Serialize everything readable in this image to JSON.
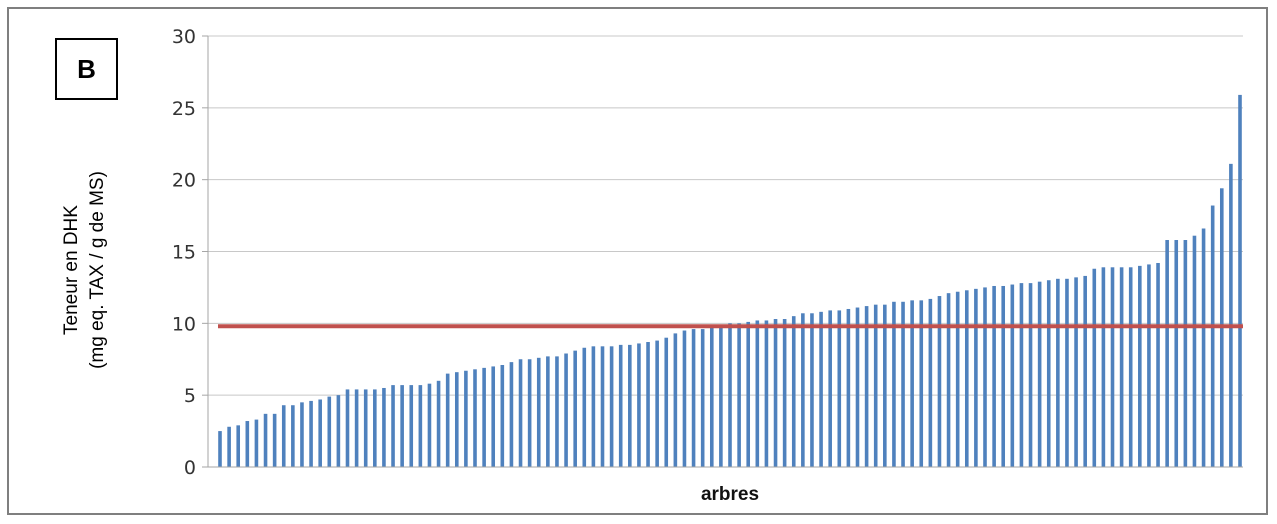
{
  "panel_label": "B",
  "chart_data": {
    "type": "bar",
    "xlabel": "arbres",
    "ylabel_lines": [
      "Teneur en DHK",
      "(mg eq. TAX / g de MS)"
    ],
    "ylim": [
      0,
      30
    ],
    "yticks": [
      0,
      5,
      10,
      15,
      20,
      25,
      30
    ],
    "grid": true,
    "bar_color": "#4f81bd",
    "threshold": {
      "value": 9.8,
      "color": "#c0504d"
    },
    "values": [
      2.5,
      2.8,
      2.9,
      3.2,
      3.3,
      3.7,
      3.7,
      4.3,
      4.3,
      4.5,
      4.6,
      4.7,
      4.9,
      5.0,
      5.4,
      5.4,
      5.4,
      5.4,
      5.5,
      5.7,
      5.7,
      5.7,
      5.7,
      5.8,
      6.0,
      6.5,
      6.6,
      6.7,
      6.8,
      6.9,
      7.0,
      7.1,
      7.3,
      7.5,
      7.5,
      7.6,
      7.7,
      7.7,
      7.9,
      8.1,
      8.3,
      8.4,
      8.4,
      8.4,
      8.5,
      8.5,
      8.6,
      8.7,
      8.8,
      9.0,
      9.3,
      9.5,
      9.6,
      9.6,
      9.7,
      9.9,
      10.0,
      10.0,
      10.1,
      10.2,
      10.2,
      10.3,
      10.3,
      10.5,
      10.7,
      10.7,
      10.8,
      10.9,
      10.9,
      11.0,
      11.1,
      11.2,
      11.3,
      11.3,
      11.5,
      11.5,
      11.6,
      11.6,
      11.7,
      11.9,
      12.1,
      12.2,
      12.3,
      12.4,
      12.5,
      12.6,
      12.6,
      12.7,
      12.8,
      12.8,
      12.9,
      13.0,
      13.1,
      13.1,
      13.2,
      13.3,
      13.8,
      13.9,
      13.9,
      13.9,
      13.9,
      14.0,
      14.1,
      14.2,
      15.8,
      15.8,
      15.8,
      16.1,
      16.6,
      18.2,
      19.4,
      21.1,
      25.9
    ]
  }
}
